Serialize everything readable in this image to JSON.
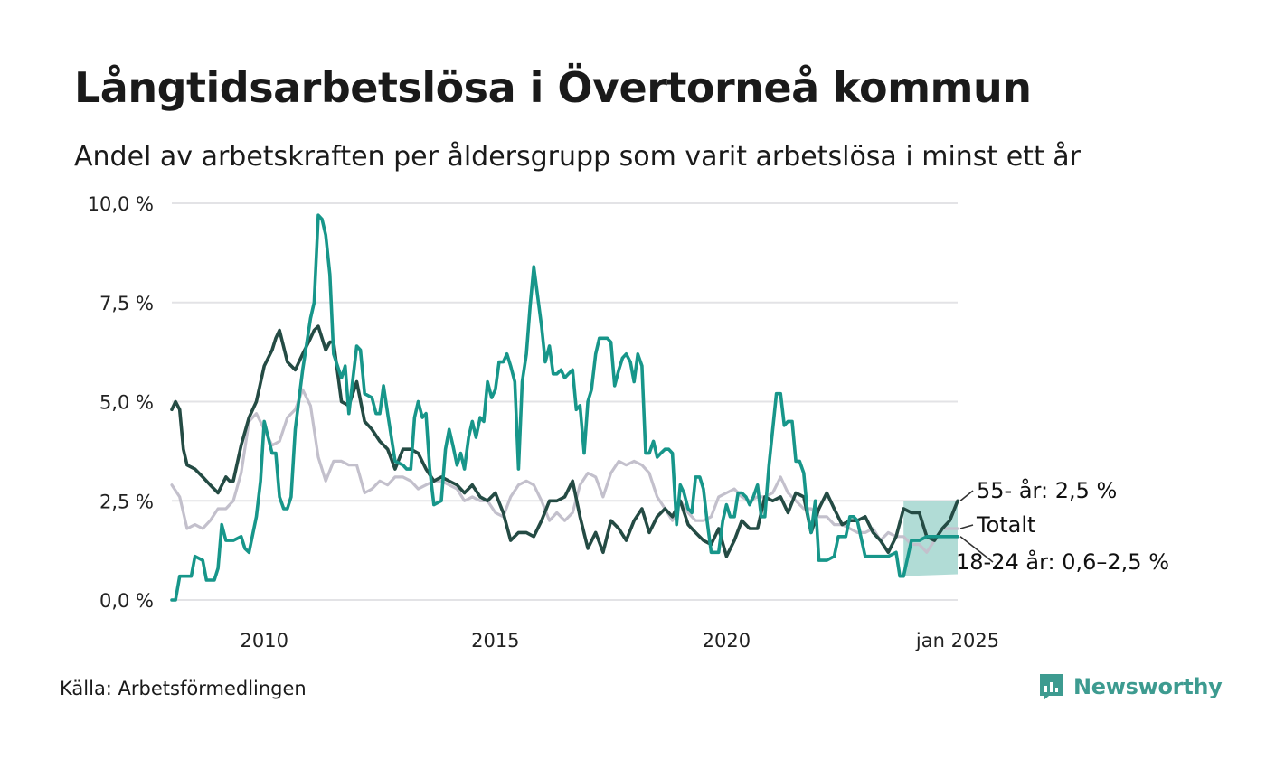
{
  "title": "Långtidsarbetslösa i Övertorneå kommun",
  "subtitle": "Andel av arbetskraften per åldersgrupp som varit arbetslösa i minst ett år",
  "source": "Källa: Arbetsförmedlingen",
  "brand": "Newsworthy",
  "colors": {
    "youth": "#17968a",
    "senior": "#244b44",
    "total": "#c3c0cc",
    "band": "#a3d6cf",
    "grid": "#e3e3e6",
    "brand": "#3d9b90"
  },
  "chart_data": {
    "type": "line",
    "title": "Långtidsarbetslösa i Övertorneå kommun",
    "xlabel": "",
    "ylabel": "",
    "xlim": [
      2008.0,
      2025.0
    ],
    "ylim": [
      0,
      10
    ],
    "y_ticks": [
      0,
      2.5,
      5,
      7.5,
      10
    ],
    "y_tick_labels": [
      "0,0 %",
      "2,5 %",
      "5,0 %",
      "7,5 %",
      "10,0 %"
    ],
    "x_ticks": [
      2010,
      2015,
      2020,
      2025
    ],
    "x_tick_labels": [
      "2010",
      "2015",
      "2020",
      "jan 2025"
    ],
    "end_labels": {
      "senior": "55- år: 2,5 %",
      "total": "Totalt",
      "youth": "18-24 år: 0,6–2,5 %"
    },
    "band": {
      "name": "18-24 år (osäkerhetsintervall)",
      "x": [
        2023.83,
        2025.0
      ],
      "lower": [
        0.6,
        0.65
      ],
      "upper": [
        2.5,
        2.5
      ]
    },
    "series": [
      {
        "name": "Totalt",
        "key": "total",
        "x": [
          2008.0,
          2008.17,
          2008.33,
          2008.5,
          2008.67,
          2008.83,
          2009.0,
          2009.17,
          2009.33,
          2009.5,
          2009.67,
          2009.83,
          2010.0,
          2010.17,
          2010.33,
          2010.5,
          2010.67,
          2010.83,
          2011.0,
          2011.17,
          2011.33,
          2011.5,
          2011.67,
          2011.83,
          2012.0,
          2012.17,
          2012.33,
          2012.5,
          2012.67,
          2012.83,
          2013.0,
          2013.17,
          2013.33,
          2013.5,
          2013.67,
          2013.83,
          2014.0,
          2014.17,
          2014.33,
          2014.5,
          2014.67,
          2014.83,
          2015.0,
          2015.17,
          2015.33,
          2015.5,
          2015.67,
          2015.83,
          2016.0,
          2016.17,
          2016.33,
          2016.5,
          2016.67,
          2016.83,
          2017.0,
          2017.17,
          2017.33,
          2017.5,
          2017.67,
          2017.83,
          2018.0,
          2018.17,
          2018.33,
          2018.5,
          2018.67,
          2018.83,
          2019.0,
          2019.17,
          2019.33,
          2019.5,
          2019.67,
          2019.83,
          2020.0,
          2020.17,
          2020.33,
          2020.5,
          2020.67,
          2020.83,
          2021.0,
          2021.17,
          2021.33,
          2021.5,
          2021.67,
          2021.83,
          2022.0,
          2022.17,
          2022.33,
          2022.5,
          2022.67,
          2022.83,
          2023.0,
          2023.17,
          2023.33,
          2023.5,
          2023.67,
          2023.83,
          2024.0,
          2024.17,
          2024.33,
          2024.5,
          2024.67,
          2024.83,
          2025.0
        ],
        "values": [
          2.9,
          2.6,
          1.8,
          1.9,
          1.8,
          2.0,
          2.3,
          2.3,
          2.5,
          3.2,
          4.5,
          4.7,
          4.3,
          3.9,
          4.0,
          4.6,
          4.8,
          5.3,
          4.9,
          3.6,
          3.0,
          3.5,
          3.5,
          3.4,
          3.4,
          2.7,
          2.8,
          3.0,
          2.9,
          3.1,
          3.1,
          3.0,
          2.8,
          2.9,
          3.0,
          3.0,
          2.9,
          2.8,
          2.5,
          2.6,
          2.5,
          2.5,
          2.2,
          2.1,
          2.6,
          2.9,
          3.0,
          2.9,
          2.5,
          2.0,
          2.2,
          2.0,
          2.2,
          2.9,
          3.2,
          3.1,
          2.6,
          3.2,
          3.5,
          3.4,
          3.5,
          3.4,
          3.2,
          2.6,
          2.3,
          2.0,
          2.5,
          2.2,
          2.0,
          2.0,
          2.1,
          2.6,
          2.7,
          2.8,
          2.6,
          2.5,
          2.6,
          2.6,
          2.7,
          3.1,
          2.7,
          2.5,
          2.3,
          2.3,
          2.1,
          2.1,
          1.9,
          1.9,
          1.8,
          1.7,
          1.7,
          1.8,
          1.5,
          1.7,
          1.6,
          1.6,
          1.4,
          1.4,
          1.2,
          1.5,
          1.8,
          1.8,
          1.8
        ]
      },
      {
        "name": "55- år",
        "key": "senior",
        "x": [
          2008.0,
          2008.08,
          2008.17,
          2008.25,
          2008.33,
          2008.5,
          2008.67,
          2008.83,
          2009.0,
          2009.17,
          2009.25,
          2009.33,
          2009.5,
          2009.67,
          2009.83,
          2010.0,
          2010.17,
          2010.25,
          2010.33,
          2010.5,
          2010.67,
          2010.83,
          2011.0,
          2011.08,
          2011.17,
          2011.33,
          2011.42,
          2011.5,
          2011.67,
          2011.83,
          2012.0,
          2012.17,
          2012.33,
          2012.5,
          2012.67,
          2012.83,
          2013.0,
          2013.17,
          2013.33,
          2013.5,
          2013.67,
          2013.83,
          2014.0,
          2014.17,
          2014.33,
          2014.5,
          2014.67,
          2014.83,
          2015.0,
          2015.17,
          2015.33,
          2015.5,
          2015.67,
          2015.83,
          2016.0,
          2016.17,
          2016.33,
          2016.5,
          2016.67,
          2016.83,
          2017.0,
          2017.17,
          2017.33,
          2017.5,
          2017.67,
          2017.83,
          2018.0,
          2018.17,
          2018.33,
          2018.5,
          2018.67,
          2018.83,
          2019.0,
          2019.17,
          2019.33,
          2019.5,
          2019.67,
          2019.83,
          2020.0,
          2020.17,
          2020.33,
          2020.5,
          2020.67,
          2020.83,
          2021.0,
          2021.17,
          2021.33,
          2021.5,
          2021.67,
          2021.83,
          2022.0,
          2022.17,
          2022.33,
          2022.5,
          2022.67,
          2022.83,
          2023.0,
          2023.17,
          2023.33,
          2023.5,
          2023.67,
          2023.83,
          2024.0,
          2024.17,
          2024.33,
          2024.5,
          2024.67,
          2024.83,
          2025.0
        ],
        "values": [
          4.8,
          5.0,
          4.8,
          3.8,
          3.4,
          3.3,
          3.1,
          2.9,
          2.7,
          3.1,
          3.0,
          3.0,
          3.9,
          4.6,
          5.0,
          5.9,
          6.3,
          6.6,
          6.8,
          6.0,
          5.8,
          6.2,
          6.6,
          6.8,
          6.9,
          6.3,
          6.5,
          6.5,
          5.0,
          4.9,
          5.5,
          4.5,
          4.3,
          4.0,
          3.8,
          3.3,
          3.8,
          3.8,
          3.7,
          3.3,
          3.0,
          3.1,
          3.0,
          2.9,
          2.7,
          2.9,
          2.6,
          2.5,
          2.7,
          2.2,
          1.5,
          1.7,
          1.7,
          1.6,
          2.0,
          2.5,
          2.5,
          2.6,
          3.0,
          2.1,
          1.3,
          1.7,
          1.2,
          2.0,
          1.8,
          1.5,
          2.0,
          2.3,
          1.7,
          2.1,
          2.3,
          2.1,
          2.5,
          1.9,
          1.7,
          1.5,
          1.4,
          1.8,
          1.1,
          1.5,
          2.0,
          1.8,
          1.8,
          2.6,
          2.5,
          2.6,
          2.2,
          2.7,
          2.6,
          1.7,
          2.3,
          2.7,
          2.3,
          1.9,
          2.0,
          2.0,
          2.1,
          1.7,
          1.5,
          1.2,
          1.6,
          2.3,
          2.2,
          2.2,
          1.6,
          1.5,
          1.8,
          2.0,
          2.5
        ]
      },
      {
        "name": "18-24 år",
        "key": "youth",
        "x": [
          2008.0,
          2008.08,
          2008.17,
          2008.33,
          2008.42,
          2008.5,
          2008.67,
          2008.75,
          2008.83,
          2008.92,
          2009.0,
          2009.08,
          2009.17,
          2009.33,
          2009.5,
          2009.58,
          2009.67,
          2009.83,
          2009.92,
          2010.0,
          2010.17,
          2010.25,
          2010.33,
          2010.42,
          2010.5,
          2010.58,
          2010.67,
          2010.83,
          2011.0,
          2011.08,
          2011.17,
          2011.25,
          2011.33,
          2011.42,
          2011.5,
          2011.67,
          2011.75,
          2011.83,
          2012.0,
          2012.08,
          2012.17,
          2012.33,
          2012.42,
          2012.5,
          2012.58,
          2012.67,
          2012.83,
          2013.0,
          2013.08,
          2013.17,
          2013.25,
          2013.33,
          2013.42,
          2013.5,
          2013.58,
          2013.67,
          2013.83,
          2013.92,
          2014.0,
          2014.08,
          2014.17,
          2014.25,
          2014.33,
          2014.42,
          2014.5,
          2014.58,
          2014.67,
          2014.75,
          2014.83,
          2014.92,
          2015.0,
          2015.08,
          2015.17,
          2015.25,
          2015.33,
          2015.42,
          2015.5,
          2015.58,
          2015.67,
          2015.75,
          2015.83,
          2016.0,
          2016.08,
          2016.17,
          2016.25,
          2016.33,
          2016.42,
          2016.5,
          2016.58,
          2016.67,
          2016.75,
          2016.83,
          2016.92,
          2017.0,
          2017.08,
          2017.17,
          2017.25,
          2017.33,
          2017.42,
          2017.5,
          2017.58,
          2017.67,
          2017.75,
          2017.83,
          2017.92,
          2018.0,
          2018.08,
          2018.17,
          2018.25,
          2018.33,
          2018.42,
          2018.5,
          2018.58,
          2018.67,
          2018.75,
          2018.83,
          2018.92,
          2019.0,
          2019.08,
          2019.17,
          2019.25,
          2019.33,
          2019.42,
          2019.5,
          2019.58,
          2019.67,
          2019.75,
          2019.83,
          2019.92,
          2020.0,
          2020.08,
          2020.17,
          2020.25,
          2020.33,
          2020.42,
          2020.5,
          2020.58,
          2020.67,
          2020.75,
          2020.83,
          2020.92,
          2021.0,
          2021.08,
          2021.17,
          2021.25,
          2021.33,
          2021.42,
          2021.5,
          2021.58,
          2021.67,
          2021.75,
          2021.83,
          2021.92,
          2022.0,
          2022.17,
          2022.33,
          2022.42,
          2022.5,
          2022.58,
          2022.67,
          2022.75,
          2022.83,
          2023.0,
          2023.17,
          2023.33,
          2023.5,
          2023.67,
          2023.75,
          2023.83,
          2024.0,
          2024.17,
          2024.33,
          2024.5,
          2024.67,
          2024.83,
          2025.0
        ],
        "values": [
          0.0,
          0.0,
          0.6,
          0.6,
          0.6,
          1.1,
          1.0,
          0.5,
          0.5,
          0.5,
          0.8,
          1.9,
          1.5,
          1.5,
          1.6,
          1.3,
          1.2,
          2.1,
          3.0,
          4.5,
          3.7,
          3.7,
          2.6,
          2.3,
          2.3,
          2.6,
          4.3,
          5.8,
          7.1,
          7.5,
          9.7,
          9.6,
          9.2,
          8.2,
          6.2,
          5.6,
          5.9,
          4.7,
          6.4,
          6.3,
          5.2,
          5.1,
          4.7,
          4.7,
          5.4,
          4.7,
          3.5,
          3.4,
          3.3,
          3.3,
          4.6,
          5.0,
          4.6,
          4.7,
          3.3,
          2.4,
          2.5,
          3.8,
          4.3,
          3.9,
          3.4,
          3.7,
          3.3,
          4.1,
          4.5,
          4.1,
          4.6,
          4.5,
          5.5,
          5.1,
          5.3,
          6.0,
          6.0,
          6.2,
          5.9,
          5.5,
          3.3,
          5.5,
          6.2,
          7.4,
          8.4,
          6.9,
          6.0,
          6.4,
          5.7,
          5.7,
          5.8,
          5.6,
          5.7,
          5.8,
          4.8,
          4.9,
          3.7,
          5.0,
          5.3,
          6.2,
          6.6,
          6.6,
          6.6,
          6.5,
          5.4,
          5.8,
          6.1,
          6.2,
          6.0,
          5.5,
          6.2,
          5.9,
          3.7,
          3.7,
          4.0,
          3.6,
          3.7,
          3.8,
          3.8,
          3.7,
          1.9,
          2.9,
          2.7,
          2.3,
          2.2,
          3.1,
          3.1,
          2.8,
          2.0,
          1.2,
          1.2,
          1.2,
          2.0,
          2.4,
          2.1,
          2.1,
          2.7,
          2.7,
          2.6,
          2.4,
          2.6,
          2.9,
          2.1,
          2.1,
          3.4,
          4.3,
          5.2,
          5.2,
          4.4,
          4.5,
          4.5,
          3.5,
          3.5,
          3.2,
          2.2,
          1.7,
          2.5,
          1.0,
          1.0,
          1.1,
          1.6,
          1.6,
          1.6,
          2.1,
          2.1,
          2.0,
          1.1,
          1.1,
          1.1,
          1.1,
          1.2,
          0.6,
          0.6,
          1.5,
          1.5,
          1.6,
          1.6,
          1.6,
          1.6,
          1.6
        ]
      }
    ]
  }
}
